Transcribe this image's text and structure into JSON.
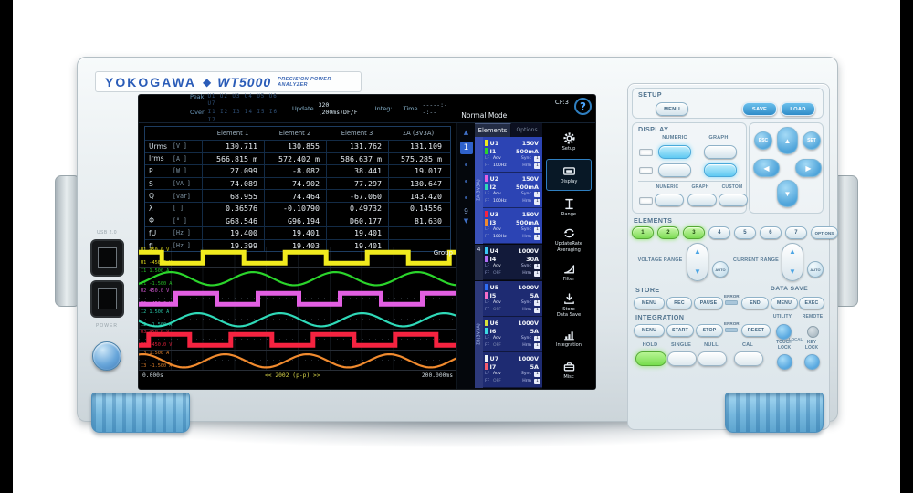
{
  "brand": {
    "logo": "YOKOGAWA",
    "diamond": "◆",
    "model": "WT5000",
    "subtitle": "PRECISION POWER ANALYZER"
  },
  "left_side": {
    "usb_label": "USB 2.0",
    "power_label": "POWER"
  },
  "screen": {
    "status": {
      "peak_label": "Peak",
      "peak_values": "U1 U2 U3 U4 U5 U6 U7",
      "over_label": "Over",
      "over_values": "I1 I2 I3 I4 I5 I6 I7",
      "update_label": "Update",
      "update_value": "320 (200ms)DF/F",
      "integ_label": "Integ:",
      "time_label": "Time",
      "time_value": "-----:--:--",
      "mode": "Normal Mode",
      "cf": "CF:3",
      "help": "?"
    },
    "table": {
      "col_headers": [
        "Element 1",
        "Element 2",
        "Element 3",
        "ΣA (3V3A)"
      ],
      "rows": [
        {
          "name": "Urms",
          "unit": "[V  ]",
          "values": [
            "130.711",
            "130.855",
            "131.762",
            "131.109"
          ]
        },
        {
          "name": "Irms",
          "unit": "[A  ]",
          "values": [
            "566.815 m",
            "572.402 m",
            "586.637 m",
            "575.285 m"
          ]
        },
        {
          "name": "P",
          "unit": "[W  ]",
          "values": [
            "27.099",
            "-8.082",
            "38.441",
            "19.017"
          ]
        },
        {
          "name": "S",
          "unit": "[VA ]",
          "values": [
            "74.089",
            "74.902",
            "77.297",
            "130.647"
          ]
        },
        {
          "name": "Q",
          "unit": "[var]",
          "values": [
            "68.955",
            "74.464",
            "-67.060",
            "143.420"
          ]
        },
        {
          "name": "λ",
          "unit": "[   ]",
          "values": [
            "0.36576",
            "-0.10790",
            "0.49732",
            "0.14556"
          ]
        },
        {
          "name": "Φ",
          "unit": "[°  ]",
          "values": [
            "G68.546",
            "G96.194",
            "D60.177",
            "81.630"
          ]
        },
        {
          "name": "fU",
          "unit": "[Hz ]",
          "values": [
            "19.400",
            "19.401",
            "19.401",
            ""
          ]
        },
        {
          "name": "fI",
          "unit": "[Hz ]",
          "values": [
            "19.399",
            "19.403",
            "19.401",
            ""
          ]
        }
      ]
    },
    "pager": {
      "up": "▲",
      "current": "1",
      "last": "9",
      "down": "▼"
    },
    "waveforms": {
      "group_label": "Group",
      "x_start": "0.000s",
      "x_center": "<< 2002 (p-p) >>",
      "x_end": "200.000ms",
      "traces": [
        {
          "channel": "U1",
          "type": "square",
          "color": "#f0ea1e",
          "top": "450.0 V",
          "bottom": "-450.0 V",
          "phase": 0.22
        },
        {
          "channel": "I1",
          "type": "sine",
          "color": "#2bd42b",
          "top": "1.500 A",
          "bottom": "-1.500 A",
          "phase": 0.14
        },
        {
          "channel": "U2",
          "type": "square",
          "color": "#e25fe2",
          "top": "450.0 V",
          "bottom": "-450.0 V",
          "phase": 0.55
        },
        {
          "channel": "I2",
          "type": "sine",
          "color": "#2fd9b8",
          "top": "1.500 A",
          "bottom": "-1.500 A",
          "phase": 0.47
        },
        {
          "channel": "U3",
          "type": "square",
          "color": "#f52340",
          "top": "450.0 V",
          "bottom": "-450.0 V",
          "phase": 0.88
        },
        {
          "channel": "I3",
          "type": "sine",
          "color": "#f08a2e",
          "top": "1.500 A",
          "bottom": "-1.500 A",
          "phase": 0.8
        }
      ]
    },
    "elements_panel": {
      "tabs": [
        {
          "label": "Elements",
          "active": true
        },
        {
          "label": "Options",
          "active": false
        }
      ],
      "sub_labels": {
        "lf": "LF",
        "ff": "FF",
        "sync": "Sync",
        "hrm": "Hrm"
      },
      "groups": [
        {
          "label": "ΣA(3V3A)",
          "bg": "#2c44b4",
          "rows": [
            {
              "u": "U1",
              "u_range": "150V",
              "u_color": "#f0ea1e",
              "i": "I1",
              "i_range": "500mA",
              "i_color": "#2bd42b",
              "lf_val": "Adv",
              "ff_val": "100Hz",
              "sync_box": "1",
              "hrm_box": "1"
            },
            {
              "u": "U2",
              "u_range": "150V",
              "u_color": "#e25fe2",
              "i": "I2",
              "i_range": "500mA",
              "i_color": "#2fd9b8",
              "lf_val": "Adv",
              "ff_val": "100Hz",
              "sync_box": "1",
              "hrm_box": "1"
            },
            {
              "u": "U3",
              "u_range": "150V",
              "u_color": "#f52340",
              "i": "I3",
              "i_range": "500mA",
              "i_color": "#f08a2e",
              "lf_val": "Adv",
              "ff_val": "100Hz",
              "sync_box": "1",
              "hrm_box": "1"
            }
          ]
        },
        {
          "label": "4",
          "bg": "#121a3a",
          "rows": [
            {
              "u": "U4",
              "u_range": "1000V",
              "u_color": "#39c8f5",
              "i": "I4",
              "i_range": "30A",
              "i_color": "#b06df5",
              "lf_val": "Adv",
              "ff_val": "OFF",
              "sync_box": "1",
              "hrm_box": "1"
            }
          ]
        },
        {
          "label": "ΣB(3V3A)",
          "bg": "#1e2b72",
          "rows": [
            {
              "u": "U5",
              "u_range": "1000V",
              "u_color": "#2f6df5",
              "i": "I5",
              "i_range": "5A",
              "i_color": "#f56dc8",
              "lf_val": "Adv",
              "ff_val": "OFF",
              "sync_box": "1",
              "hrm_box": "1"
            },
            {
              "u": "U6",
              "u_range": "1000V",
              "u_color": "#d9e23c",
              "i": "I6",
              "i_range": "5A",
              "i_color": "#3cd9e2",
              "lf_val": "Adv",
              "ff_val": "OFF",
              "sync_box": "1",
              "hrm_box": "1"
            },
            {
              "u": "U7",
              "u_range": "1000V",
              "u_color": "#f0f4f6",
              "i": "I7",
              "i_range": "5A",
              "i_color": "#f55a6d",
              "lf_val": "Adv",
              "ff_val": "OFF",
              "sync_box": "1",
              "hrm_box": "1"
            }
          ]
        }
      ]
    },
    "menu_icons": [
      {
        "name": "setup",
        "lines": [
          "Setup"
        ],
        "active": false
      },
      {
        "name": "display",
        "lines": [
          "Display"
        ],
        "active": true
      },
      {
        "name": "range",
        "lines": [
          "Range"
        ],
        "active": false
      },
      {
        "name": "update-rate-averaging",
        "lines": [
          "UpdateRate",
          "Averaging"
        ],
        "active": false
      },
      {
        "name": "filter",
        "lines": [
          "Filter"
        ],
        "active": false
      },
      {
        "name": "store-data-save",
        "lines": [
          "Store",
          "Data Save"
        ],
        "active": false
      },
      {
        "name": "integration",
        "lines": [
          "Integration"
        ],
        "active": false
      },
      {
        "name": "misc",
        "lines": [
          "Misc"
        ],
        "active": false
      }
    ]
  },
  "control_panel": {
    "setup": {
      "title": "SETUP",
      "menu": "MENU",
      "save": "SAVE",
      "load": "LOAD"
    },
    "display": {
      "title": "DISPLAY",
      "numeric": "NUMERIC",
      "graph": "GRAPH",
      "numeric2": "NUMERIC",
      "graph2": "GRAPH",
      "custom": "CUSTOM"
    },
    "nav": {
      "esc": "ESC",
      "set": "SET",
      "up": "▲",
      "down": "▼",
      "left": "◀",
      "right": "▶"
    },
    "elements": {
      "title": "ELEMENTS",
      "buttons": [
        "1",
        "2",
        "3",
        "4",
        "5",
        "6",
        "7"
      ],
      "options": "OPTIONS",
      "active_count": 3
    },
    "ranges": {
      "voltage": "VOLTAGE RANGE",
      "current": "CURRENT RANGE",
      "auto": "AUTO"
    },
    "store": {
      "title": "STORE",
      "menu": "MENU",
      "rec": "REC",
      "pause": "PAUSE",
      "error": "ERROR",
      "end": "END"
    },
    "data_save": {
      "title": "DATA SAVE",
      "menu": "MENU",
      "exec": "EXEC"
    },
    "integration": {
      "title": "INTEGRATION",
      "menu": "MENU",
      "start": "START",
      "stop": "STOP",
      "error": "ERROR",
      "reset": "RESET"
    },
    "utility": {
      "utility": "UTILITY",
      "remote": "REMOTE",
      "local": "LOCAL"
    },
    "hold": "HOLD",
    "single": "SINGLE",
    "null_btn": "NULL",
    "cal": "CAL",
    "touch_lock": [
      "TOUCH",
      "LOCK"
    ],
    "key_lock": [
      "KEY",
      "LOCK"
    ]
  }
}
